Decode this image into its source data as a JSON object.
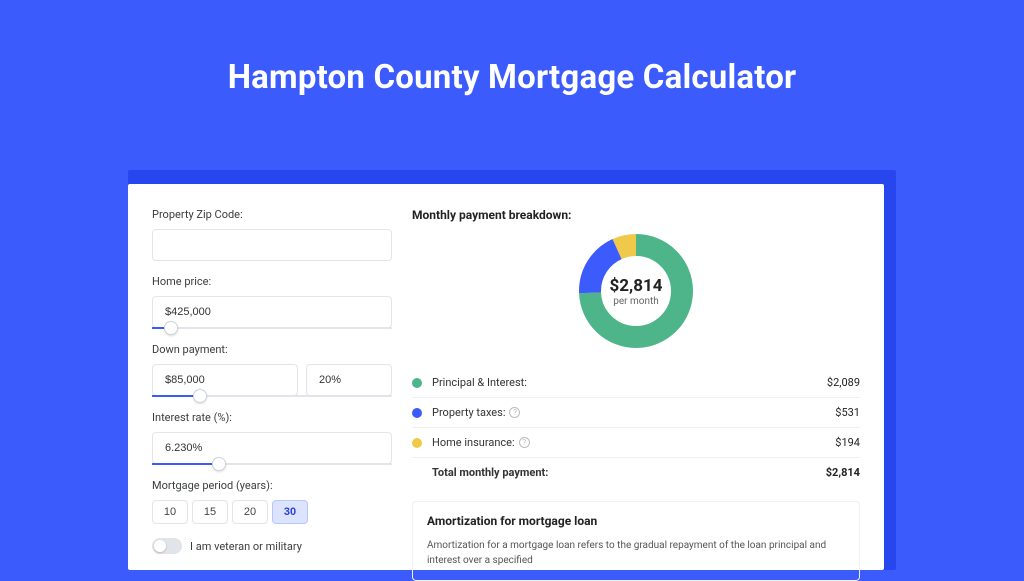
{
  "page": {
    "title": "Hampton County Mortgage Calculator",
    "accent_color": "#3b5bfd",
    "shadow_color": "#2846ed",
    "card_bg": "#ffffff"
  },
  "form": {
    "zip": {
      "label": "Property Zip Code:",
      "value": ""
    },
    "home_price": {
      "label": "Home price:",
      "value": "$425,000",
      "slider_pct": 8
    },
    "down_payment": {
      "label": "Down payment:",
      "value": "$85,000",
      "pct_value": "20%",
      "slider_pct": 20
    },
    "interest_rate": {
      "label": "Interest rate (%):",
      "value": "6.230%",
      "slider_pct": 28
    },
    "period": {
      "label": "Mortgage period (years):",
      "options": [
        "10",
        "15",
        "20",
        "30"
      ],
      "active": "30"
    },
    "veteran": {
      "label": "I am veteran or military",
      "checked": false
    }
  },
  "breakdown": {
    "title": "Monthly payment breakdown:",
    "donut": {
      "center_value": "$2,814",
      "center_sub": "per month",
      "segments": [
        {
          "key": "pi",
          "value": 2089,
          "color": "#4eb58a"
        },
        {
          "key": "taxes",
          "value": 531,
          "color": "#3b5bfd"
        },
        {
          "key": "ins",
          "value": 194,
          "color": "#f0c94a"
        }
      ]
    },
    "rows": [
      {
        "label": "Principal & Interest:",
        "value": "$2,089",
        "color": "#4eb58a",
        "info": false
      },
      {
        "label": "Property taxes:",
        "value": "$531",
        "color": "#3b5bfd",
        "info": true
      },
      {
        "label": "Home insurance:",
        "value": "$194",
        "color": "#f0c94a",
        "info": true
      }
    ],
    "total": {
      "label": "Total monthly payment:",
      "value": "$2,814"
    }
  },
  "amortization": {
    "title": "Amortization for mortgage loan",
    "text": "Amortization for a mortgage loan refers to the gradual repayment of the loan principal and interest over a specified"
  }
}
